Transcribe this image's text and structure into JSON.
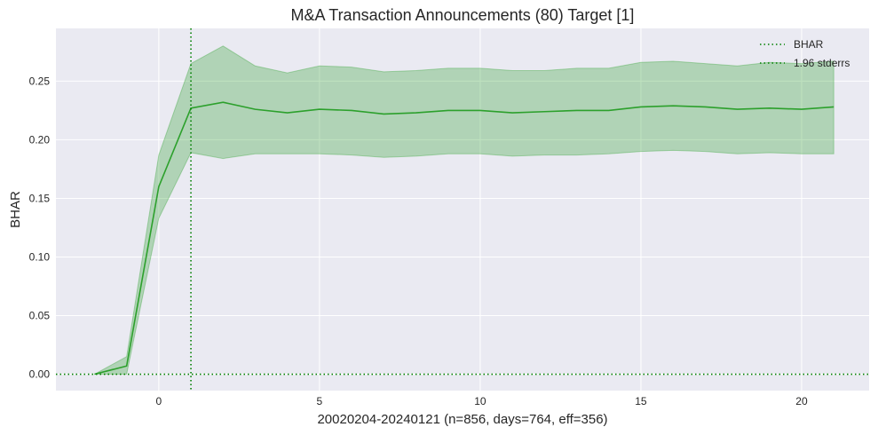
{
  "chart_data": {
    "type": "line",
    "title": "M&A Transaction Announcements (80) Target [1]",
    "xlabel": "20020204-20240121 (n=856, days=764, eff=356)",
    "ylabel": "BHAR",
    "xlim": [
      -3.2,
      22.1
    ],
    "ylim": [
      -0.014,
      0.295
    ],
    "x_ticks": [
      0,
      5,
      10,
      15,
      20
    ],
    "y_ticks": [
      0.0,
      0.05,
      0.1,
      0.15,
      0.2,
      0.25
    ],
    "x_tick_labels": [
      "0",
      "5",
      "10",
      "15",
      "20"
    ],
    "y_tick_labels": [
      "0.00",
      "0.05",
      "0.10",
      "0.15",
      "0.20",
      "0.25"
    ],
    "grid": true,
    "legend_position": "top-right",
    "legend": [
      "BHAR",
      "1.96 stderrs"
    ],
    "colors": {
      "line": "#2ca02c",
      "band": "#2ca02c",
      "background": "#eaeaf2",
      "grid": "#ffffff",
      "reference": "#007f00"
    },
    "vline_x": 1,
    "hline_y": 0,
    "series": [
      {
        "name": "BHAR",
        "x": [
          -2,
          -1,
          0,
          1,
          2,
          3,
          4,
          5,
          6,
          7,
          8,
          9,
          10,
          11,
          12,
          13,
          14,
          15,
          16,
          17,
          18,
          19,
          20,
          21
        ],
        "values": [
          0.0,
          0.007,
          0.16,
          0.227,
          0.232,
          0.226,
          0.223,
          0.226,
          0.225,
          0.222,
          0.223,
          0.225,
          0.225,
          0.223,
          0.224,
          0.225,
          0.225,
          0.228,
          0.229,
          0.228,
          0.226,
          0.227,
          0.226,
          0.228
        ],
        "lower": [
          0.0,
          0.0,
          0.133,
          0.189,
          0.184,
          0.188,
          0.188,
          0.188,
          0.187,
          0.185,
          0.186,
          0.188,
          0.188,
          0.186,
          0.187,
          0.187,
          0.188,
          0.19,
          0.191,
          0.19,
          0.188,
          0.189,
          0.188,
          0.188
        ],
        "upper": [
          0.0,
          0.015,
          0.187,
          0.265,
          0.28,
          0.263,
          0.257,
          0.263,
          0.262,
          0.258,
          0.259,
          0.261,
          0.261,
          0.259,
          0.259,
          0.261,
          0.261,
          0.266,
          0.267,
          0.265,
          0.263,
          0.266,
          0.265,
          0.267
        ]
      }
    ]
  }
}
